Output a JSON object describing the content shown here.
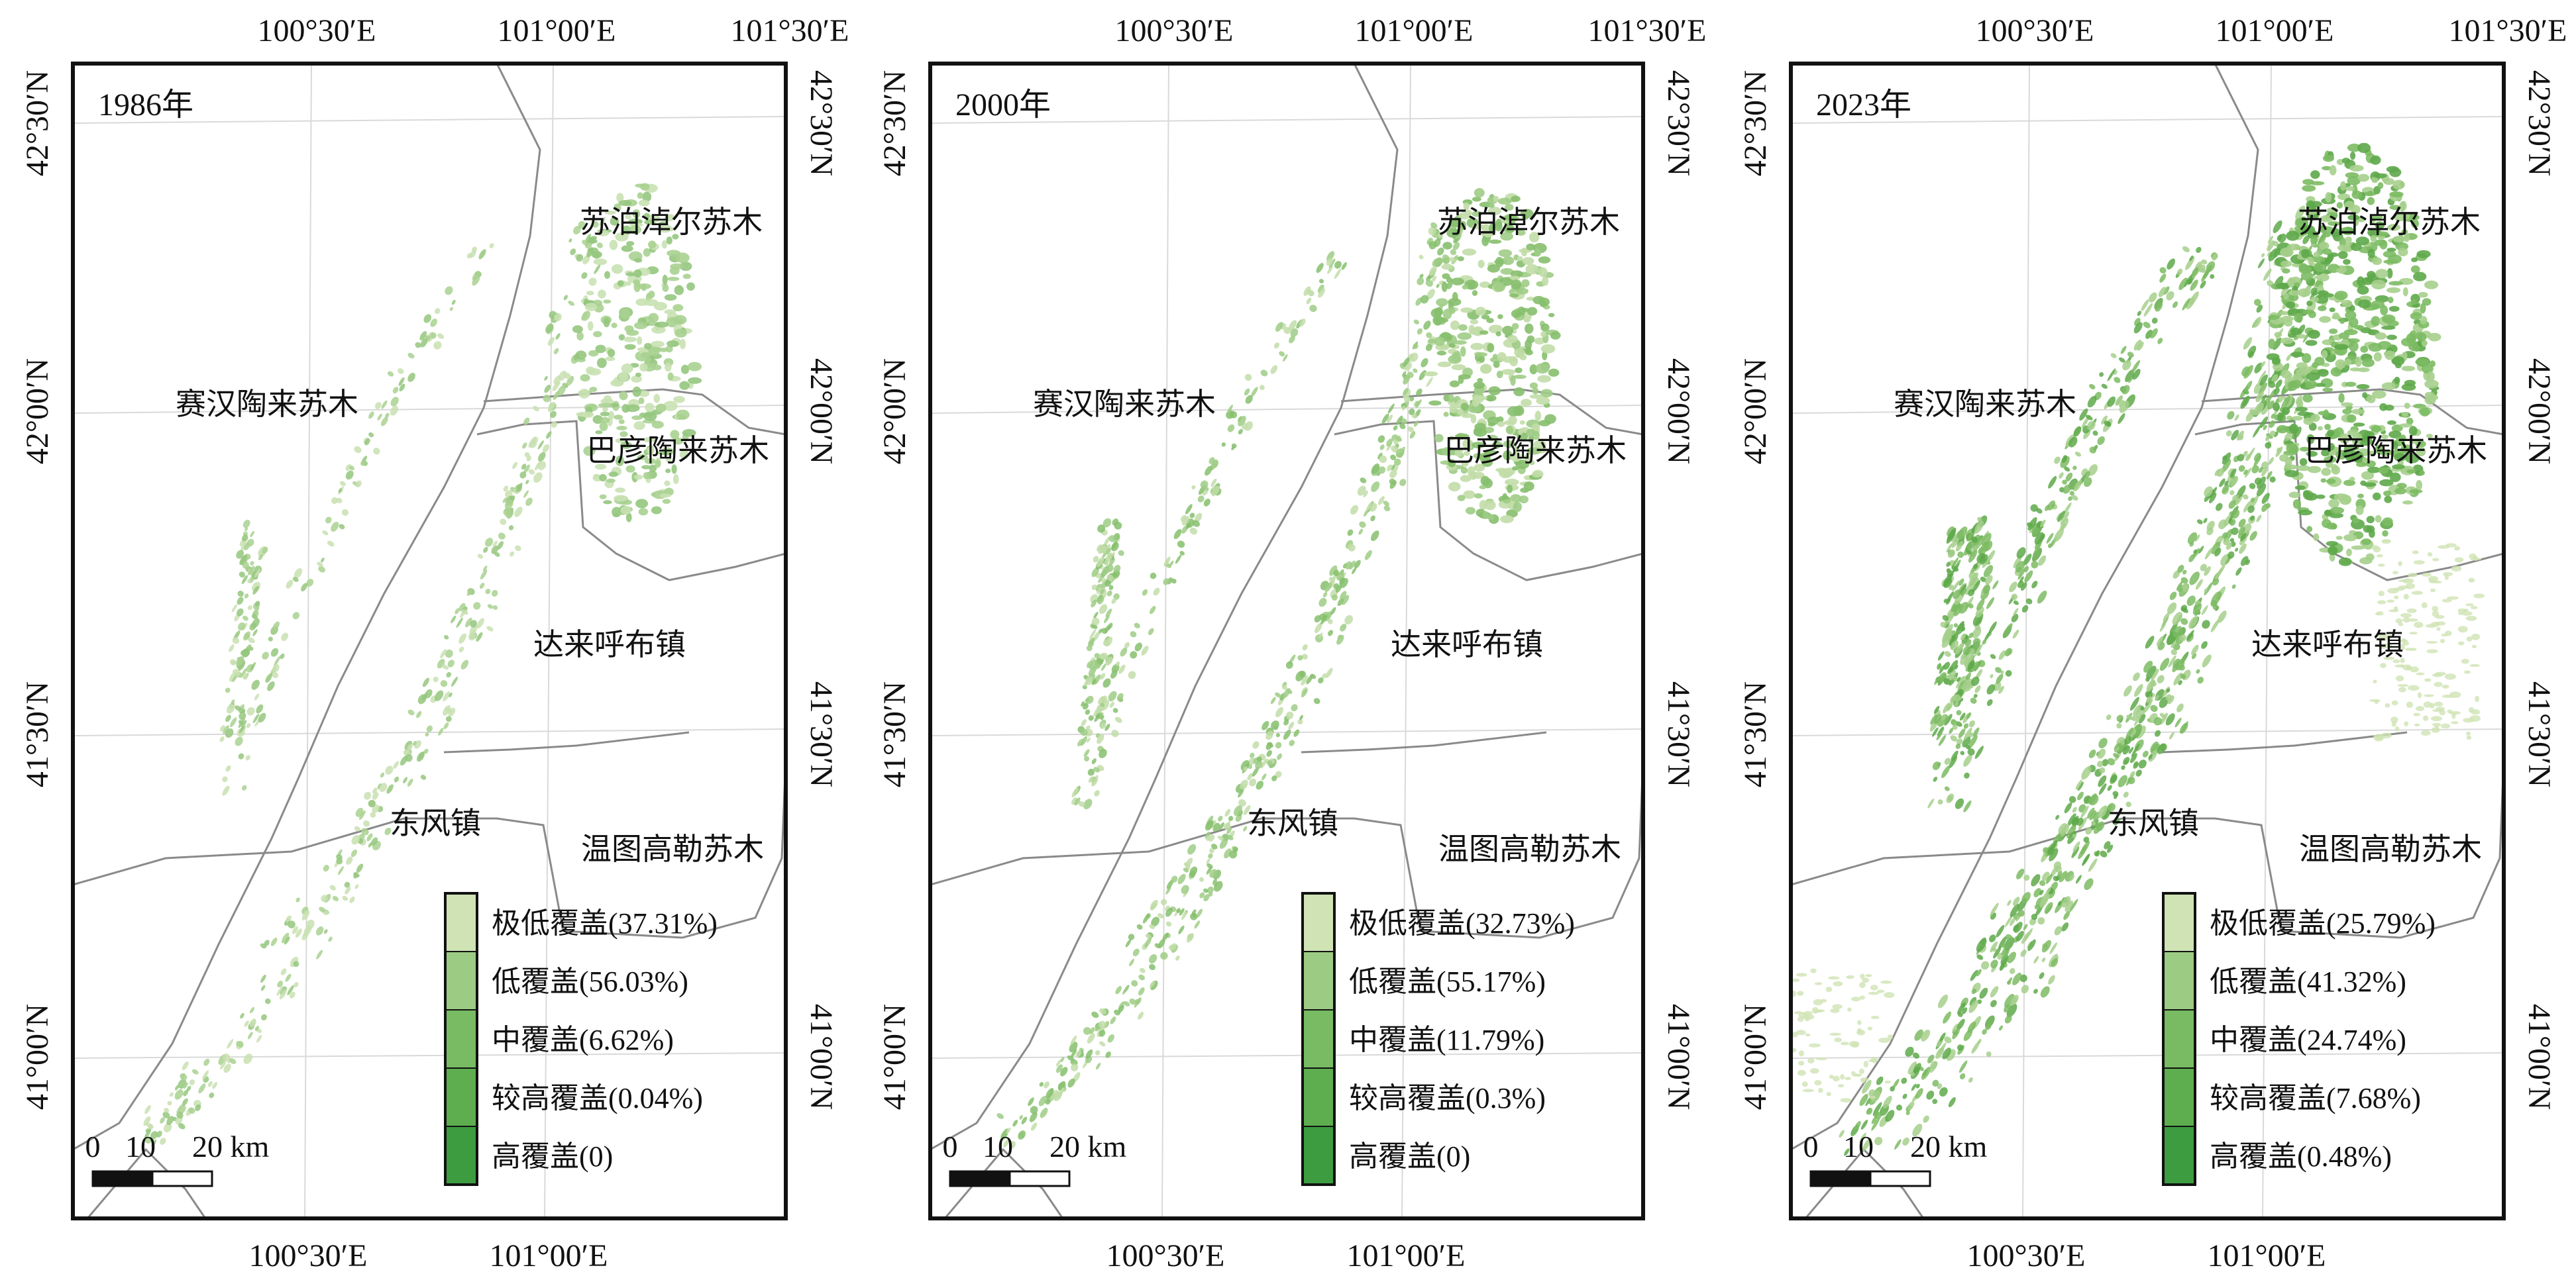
{
  "figure": {
    "panels": [
      {
        "year_label": "1986年",
        "lon_labels_top": [
          "100°30′E",
          "101°00′E",
          "101°30′E"
        ],
        "lon_labels_bottom": [
          "100°30′E",
          "101°00′E"
        ],
        "lat_labels": [
          "42°30′N",
          "42°00′N",
          "41°30′N",
          "41°00′N"
        ],
        "places": [
          "苏泊淖尔苏木",
          "赛汉陶来苏木",
          "巴彦陶来苏木",
          "达来呼布镇",
          "东风镇",
          "温图高勒苏木"
        ],
        "legend": [
          "极低覆盖(37.31%)",
          "低覆盖(56.03%)",
          "中覆盖(6.62%)",
          "较高覆盖(0.04%)",
          "高覆盖(0)"
        ],
        "coverage_pct": [
          37.31,
          56.03,
          6.62,
          0.04,
          0
        ],
        "scale": {
          "ticks": [
            "0",
            "10",
            "20 km"
          ]
        }
      },
      {
        "year_label": "2000年",
        "lon_labels_top": [
          "100°30′E",
          "101°00′E",
          "101°30′E"
        ],
        "lon_labels_bottom": [
          "100°30′E",
          "101°00′E"
        ],
        "lat_labels": [
          "42°30′N",
          "42°00′N",
          "41°30′N",
          "41°00′N"
        ],
        "places": [
          "苏泊淖尔苏木",
          "赛汉陶来苏木",
          "巴彦陶来苏木",
          "达来呼布镇",
          "东风镇",
          "温图高勒苏木"
        ],
        "legend": [
          "极低覆盖(32.73%)",
          "低覆盖(55.17%)",
          "中覆盖(11.79%)",
          "较高覆盖(0.3%)",
          "高覆盖(0)"
        ],
        "coverage_pct": [
          32.73,
          55.17,
          11.79,
          0.3,
          0
        ],
        "scale": {
          "ticks": [
            "0",
            "10",
            "20 km"
          ]
        }
      },
      {
        "year_label": "2023年",
        "lon_labels_top": [
          "100°30′E",
          "101°00′E",
          "101°30′E"
        ],
        "lon_labels_bottom": [
          "100°30′E",
          "101°00′E"
        ],
        "lat_labels": [
          "42°30′N",
          "42°00′N",
          "41°30′N",
          "41°00′N"
        ],
        "places": [
          "苏泊淖尔苏木",
          "赛汉陶来苏木",
          "巴彦陶来苏木",
          "达来呼布镇",
          "东风镇",
          "温图高勒苏木"
        ],
        "legend": [
          "极低覆盖(25.79%)",
          "低覆盖(41.32%)",
          "中覆盖(24.74%)",
          "较高覆盖(7.68%)",
          "高覆盖(0.48%)"
        ],
        "coverage_pct": [
          25.79,
          41.32,
          24.74,
          7.68,
          0.48
        ],
        "scale": {
          "ticks": [
            "0",
            "10",
            "20 km"
          ]
        }
      }
    ],
    "legend_colors": [
      "#cfe3b4",
      "#9ccb83",
      "#78bb63",
      "#5eae4f",
      "#3d9c40"
    ],
    "vegetation_color": "#6fb55a",
    "boundary_color": "#8a8a8a",
    "grid_color": "#d9d9d9"
  }
}
